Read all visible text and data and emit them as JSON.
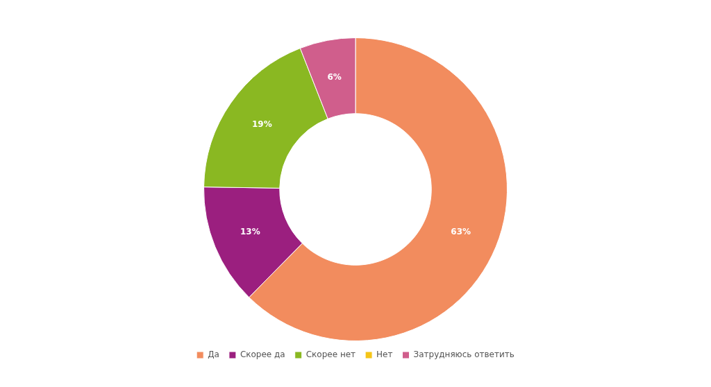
{
  "chart_data": {
    "type": "donut",
    "categories": [
      "Да",
      "Скорее да",
      "Скорее нет",
      "Нет",
      "Затрудняюсь ответить"
    ],
    "values": [
      63,
      13,
      19,
      0,
      6
    ],
    "colors": [
      "#f28c5e",
      "#9b1f7f",
      "#8ab822",
      "#f5c518",
      "#d05e8c"
    ],
    "value_labels": [
      "63%",
      "13%",
      "19%",
      null,
      "6%"
    ],
    "legend": "bottom"
  }
}
